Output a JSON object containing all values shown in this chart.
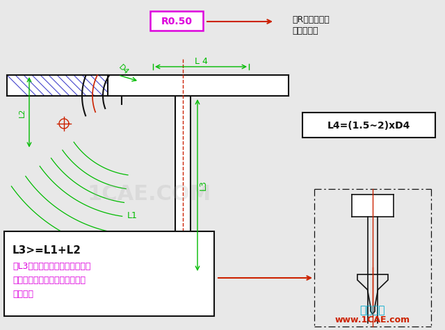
{
  "bg_color": "#e8e8e8",
  "green_color": "#00bb00",
  "black_color": "#111111",
  "red_color": "#cc2200",
  "magenta_color": "#dd00dd",
  "blue_hatch": "#4444cc",
  "cyan_color": "#00aacc",
  "white": "#ffffff",
  "gray_wm": "#aaaaaa",
  "watermark": "1CAE.COM",
  "watermark2": "仿真在线",
  "watermark3": "www.1CAE.com",
  "label_R050": "R0.50",
  "label_L4eq": "L4=(1.5~2)xD4",
  "label_L3title": "L3>=L1+L2",
  "text_note1": "如L3值大于模仁或接近模仁厅度",
  "text_note2": "时，采用右图的方式做插入式拉",
  "text_note3": "料顶针。",
  "text_anno1": "倒R角，防止锐",
  "text_anno2": "角刈出料属"
}
